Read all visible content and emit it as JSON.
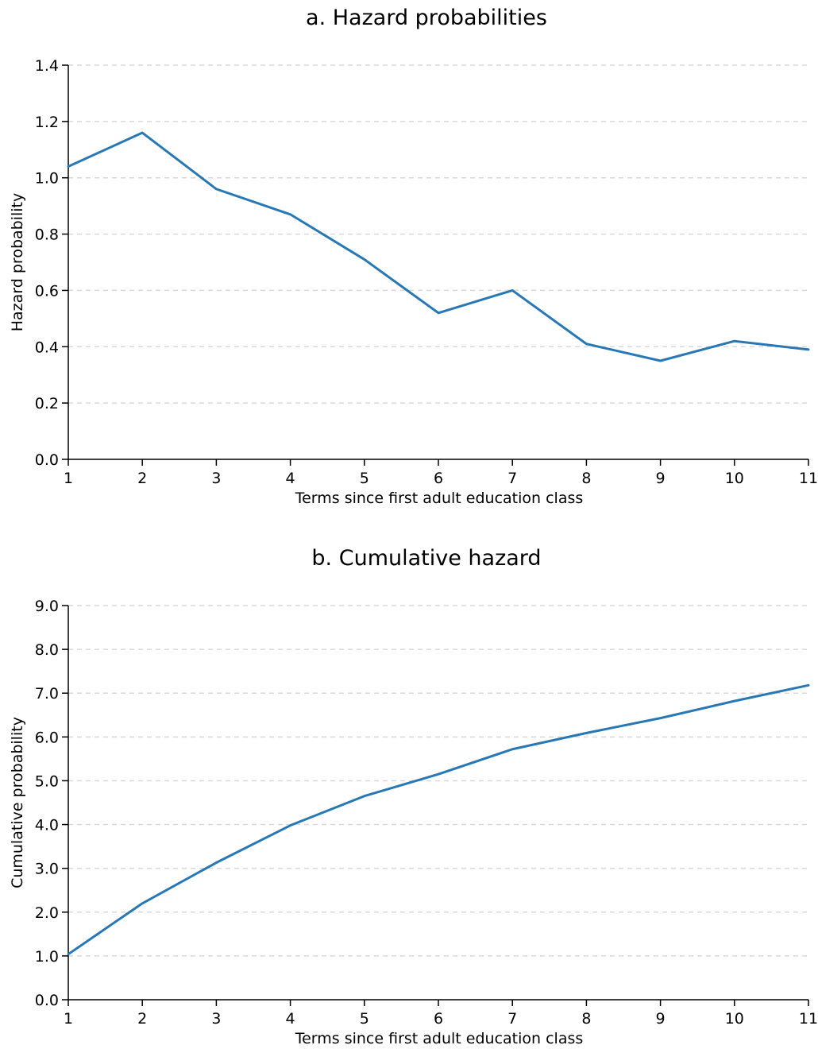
{
  "colors": {
    "line": "#2878b5"
  },
  "chart_data": [
    {
      "type": "line",
      "title": "a.   Hazard probabilities",
      "xlabel": "Terms since first adult education class",
      "ylabel": "Hazard probability",
      "x": [
        1,
        2,
        3,
        4,
        5,
        6,
        7,
        8,
        9,
        10,
        11
      ],
      "x_tick_labels": [
        "1",
        "2",
        "3",
        "4",
        "5",
        "6",
        "7",
        "8",
        "9",
        "10",
        "11"
      ],
      "y_tick_labels": [
        "0.0",
        "0.2",
        "0.4",
        "0.6",
        "0.8",
        "1.0",
        "1.2",
        "1.4"
      ],
      "ylim": [
        0,
        1.4
      ],
      "y_ticks": [
        0,
        0.2,
        0.4,
        0.6,
        0.8,
        1.0,
        1.2,
        1.4
      ],
      "grid": true,
      "series": [
        {
          "values": [
            1.04,
            1.16,
            0.96,
            0.87,
            0.71,
            0.52,
            0.6,
            0.41,
            0.35,
            0.42,
            0.39
          ]
        }
      ]
    },
    {
      "type": "line",
      "title": "b.   Cumulative hazard",
      "xlabel": "Terms since first adult education class",
      "ylabel": "Cumulative probability",
      "x": [
        1,
        2,
        3,
        4,
        5,
        6,
        7,
        8,
        9,
        10,
        11
      ],
      "x_tick_labels": [
        "1",
        "2",
        "3",
        "4",
        "5",
        "6",
        "7",
        "8",
        "9",
        "10",
        "11"
      ],
      "y_tick_labels": [
        "0.0",
        "1.0",
        "2.0",
        "3.0",
        "4.0",
        "5.0",
        "6.0",
        "7.0",
        "8.0",
        "9.0"
      ],
      "ylim": [
        0,
        9.0
      ],
      "y_ticks": [
        0,
        1,
        2,
        3,
        4,
        5,
        6,
        7,
        8,
        9
      ],
      "grid": true,
      "series": [
        {
          "values": [
            1.04,
            2.2,
            3.13,
            3.98,
            4.65,
            5.15,
            5.72,
            6.09,
            6.43,
            6.82,
            7.18
          ]
        }
      ]
    }
  ]
}
